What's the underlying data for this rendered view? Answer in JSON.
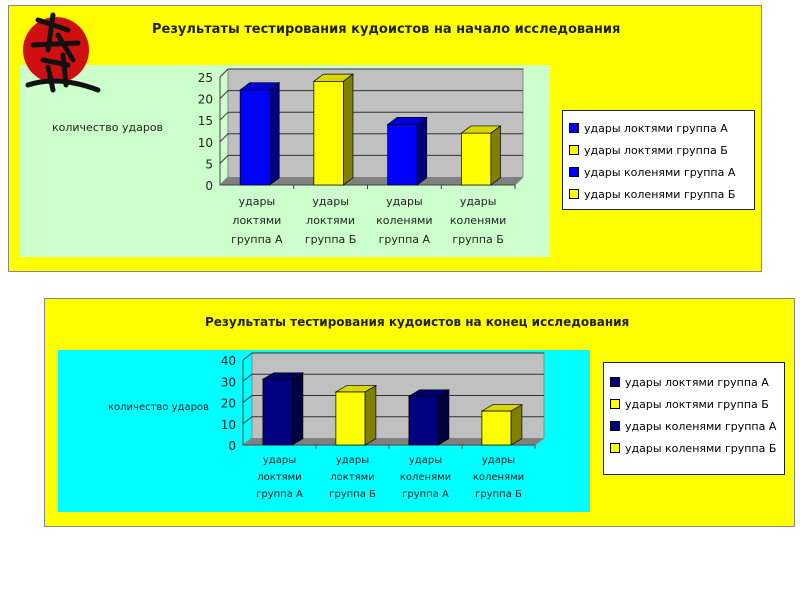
{
  "chart_data": [
    {
      "type": "bar",
      "title": "Результаты тестирования кудоистов на начало исследования",
      "ylabel": "количество ударов",
      "ylim": [
        0,
        25
      ],
      "yticks": [
        0,
        5,
        10,
        15,
        20,
        25
      ],
      "categories": [
        "удары локтями группа А",
        "удары локтями группа Б",
        "удары коленями группа А",
        "удары коленями группа Б"
      ],
      "category_lines": [
        [
          "удары",
          "локтями",
          "группа А"
        ],
        [
          "удары",
          "локтями",
          "группа Б"
        ],
        [
          "удары",
          "коленями",
          "группа А"
        ],
        [
          "удары",
          "коленями",
          "группа Б"
        ]
      ],
      "values": [
        22,
        24,
        14,
        12
      ],
      "colors": [
        "#0000ff",
        "#ffff00",
        "#0000ff",
        "#ffff00"
      ],
      "legend": [
        "удары локтями группа А",
        "удары локтями группа Б",
        "удары коленями группа А",
        "удары коленями группа Б"
      ],
      "legend_position": "right",
      "background": "#ccffcc",
      "grid": true
    },
    {
      "type": "bar",
      "title": "Результаты тестирования кудоистов на конец исследования",
      "ylabel": "количество ударов",
      "ylim": [
        0,
        40
      ],
      "yticks": [
        0,
        10,
        20,
        30,
        40
      ],
      "categories": [
        "удары локтями группа А",
        "удары локтями группа Б",
        "удары коленями группа А",
        "удары коленями группа Б"
      ],
      "category_lines": [
        [
          "удары",
          "локтями",
          "группа А"
        ],
        [
          "удары",
          "локтями",
          "группа Б"
        ],
        [
          "удары",
          "коленями",
          "группа А"
        ],
        [
          "удары",
          "коленями",
          "группа Б"
        ]
      ],
      "values": [
        31,
        25,
        23,
        16
      ],
      "colors": [
        "#000080",
        "#ffff00",
        "#000080",
        "#ffff00"
      ],
      "legend": [
        "удары локтями группа А",
        "удары локтями группа Б",
        "удары коленями группа А",
        "удары коленями группа Б"
      ],
      "legend_position": "right",
      "background": "#00ffff",
      "grid": true
    }
  ]
}
